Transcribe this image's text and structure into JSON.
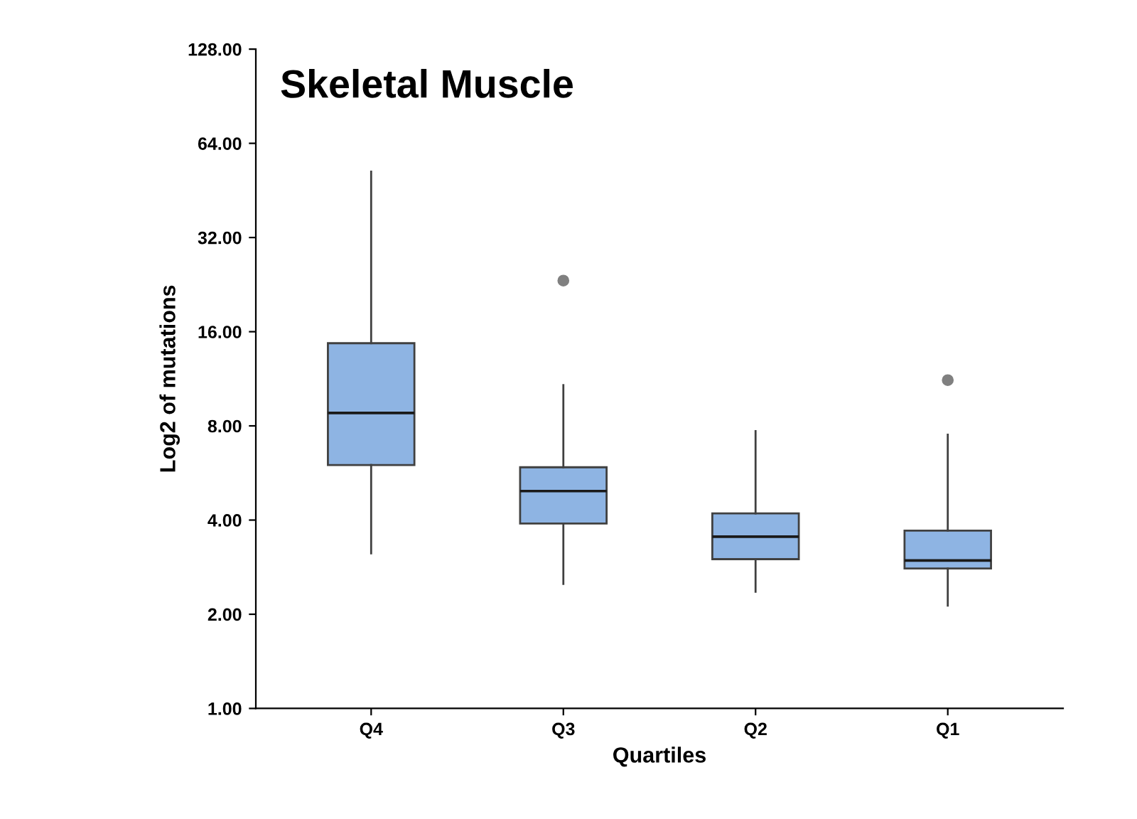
{
  "chart_data": {
    "type": "box",
    "title": "Skeletal Muscle",
    "xlabel": "Quartiles",
    "ylabel": "Log2 of mutations",
    "categories": [
      "Q4",
      "Q3",
      "Q2",
      "Q1"
    ],
    "series": [
      {
        "color": "#8eb4e3",
        "boxes": [
          {
            "low": 3.13,
            "q1": 6.0,
            "median": 8.8,
            "q3": 14.7,
            "high": 52
          },
          {
            "low": 2.5,
            "q1": 3.9,
            "median": 4.95,
            "q3": 5.9,
            "high": 10.8,
            "outliers": [
              23.3
            ]
          },
          {
            "low": 2.36,
            "q1": 3.0,
            "median": 3.54,
            "q3": 4.2,
            "high": 7.7
          },
          {
            "low": 2.13,
            "q1": 2.8,
            "median": 2.97,
            "q3": 3.7,
            "high": 7.5,
            "outliers": [
              11.2
            ]
          }
        ]
      }
    ],
    "log": "y",
    "ylim": [
      1,
      128
    ],
    "yticks": [
      {
        "value": 1,
        "label": "1.00"
      },
      {
        "value": 2,
        "label": "2.00"
      },
      {
        "value": 4,
        "label": "4.00"
      },
      {
        "value": 8,
        "label": "8.00"
      },
      {
        "value": 16,
        "label": "16.00"
      },
      {
        "value": 32,
        "label": "32.00"
      },
      {
        "value": 64,
        "label": "64.00"
      },
      {
        "value": 128,
        "label": "128.00"
      }
    ],
    "grid": false,
    "legend": false
  }
}
